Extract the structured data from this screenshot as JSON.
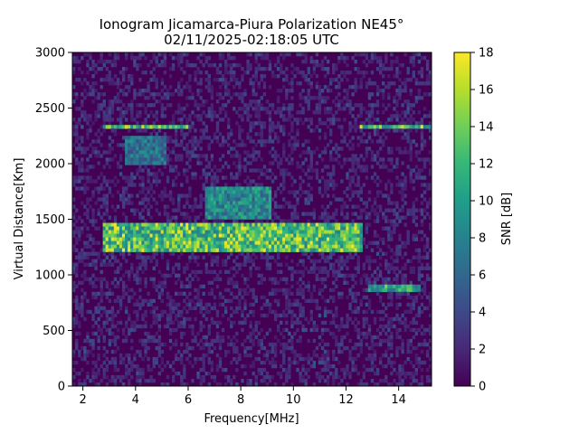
{
  "chart_data": {
    "type": "heatmap",
    "title_line1": "Ionogram Jicamarca-Piura Polarization NE45°",
    "title_line2": "02/11/2025-02:18:05 UTC",
    "xlabel": "Frequency[MHz]",
    "ylabel": "Virtual Distance[Km]",
    "colorbar_label": "SNR [dB]",
    "xlim": [
      1.6,
      15.25
    ],
    "ylim": [
      0,
      3000
    ],
    "x_ticks": [
      2,
      4,
      6,
      8,
      10,
      12,
      14
    ],
    "x_tick_labels": [
      "2",
      "4",
      "6",
      "8",
      "10",
      "12",
      "14"
    ],
    "y_ticks": [
      0,
      500,
      1000,
      1500,
      2000,
      2500,
      3000
    ],
    "y_tick_labels": [
      "0",
      "500",
      "1000",
      "1500",
      "2000",
      "2500",
      "3000"
    ],
    "colorbar_ticks": [
      0,
      2,
      4,
      6,
      8,
      10,
      12,
      14,
      16,
      18
    ],
    "colorbar_tick_labels": [
      "0",
      "2",
      "4",
      "6",
      "8",
      "10",
      "12",
      "14",
      "16",
      "18"
    ],
    "clim": [
      0,
      18
    ],
    "colormap": "viridis",
    "colormap_stops": [
      "#440154",
      "#482878",
      "#3e4989",
      "#31688e",
      "#26828e",
      "#1f9e89",
      "#35b779",
      "#6ece58",
      "#b5de2b",
      "#fde725"
    ],
    "grid": false,
    "echo_regions": [
      {
        "f_start": 2.8,
        "f_end": 12.6,
        "d_start": 1200,
        "d_end": 1480,
        "snr": 17
      },
      {
        "f_start": 2.8,
        "f_end": 6.0,
        "d_start": 2300,
        "d_end": 2350,
        "snr": 16
      },
      {
        "f_start": 12.5,
        "f_end": 15.2,
        "d_start": 2310,
        "d_end": 2350,
        "snr": 17
      },
      {
        "f_start": 6.6,
        "f_end": 9.2,
        "d_start": 1500,
        "d_end": 1780,
        "snr": 11
      },
      {
        "f_start": 3.6,
        "f_end": 5.2,
        "d_start": 2000,
        "d_end": 2250,
        "snr": 9
      },
      {
        "f_start": 12.8,
        "f_end": 14.8,
        "d_start": 860,
        "d_end": 900,
        "snr": 14
      }
    ]
  }
}
